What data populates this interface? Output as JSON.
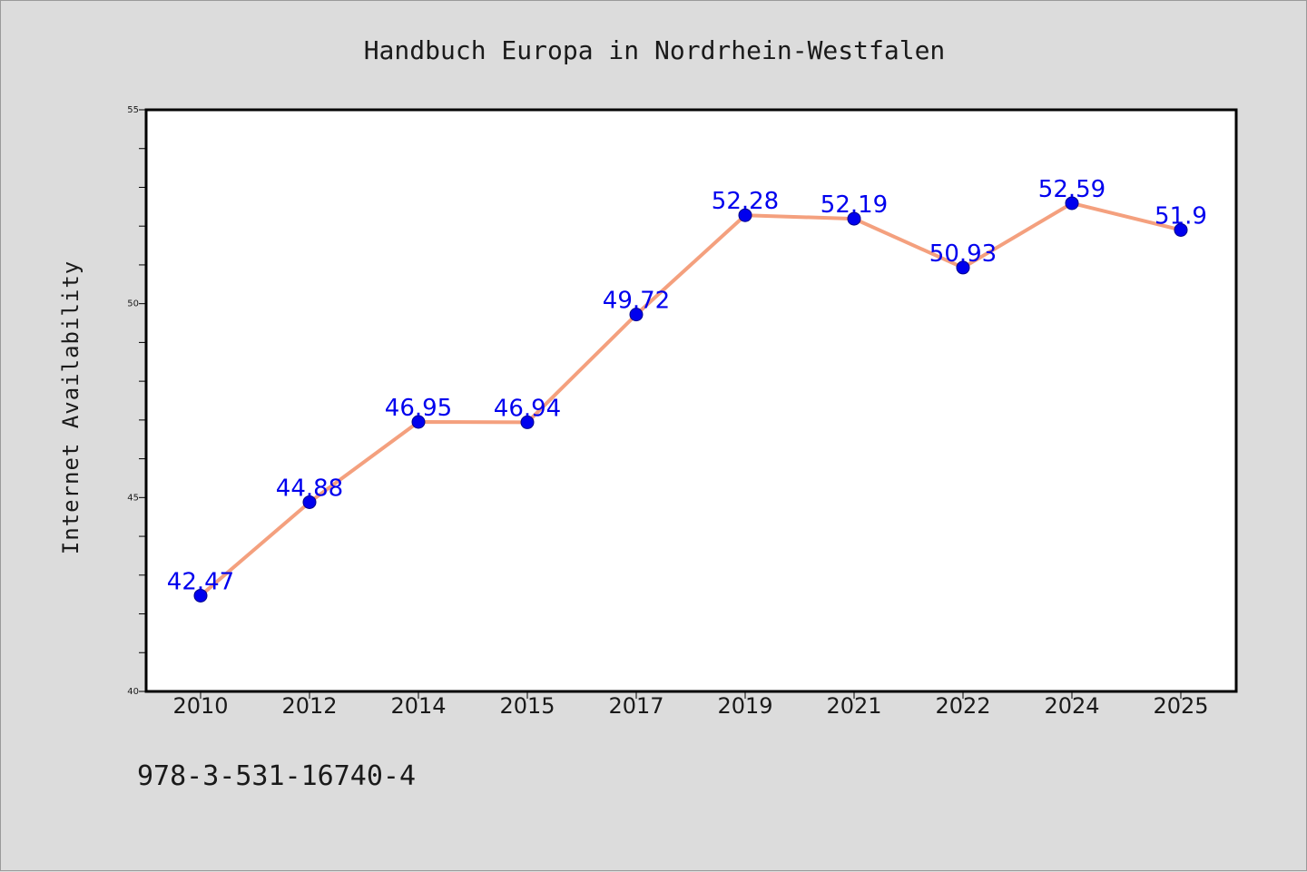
{
  "chart_data": {
    "type": "line",
    "title": "Handbuch Europa in Nordrhein-Westfalen",
    "xlabel": "",
    "ylabel": "Internet Availability",
    "categories": [
      "2010",
      "2012",
      "2014",
      "2015",
      "2017",
      "2019",
      "2021",
      "2022",
      "2024",
      "2025"
    ],
    "series": [
      {
        "values": [
          42.47,
          44.88,
          46.95,
          46.94,
          49.72,
          52.28,
          52.19,
          50.93,
          52.59,
          51.9
        ],
        "labels": [
          "42.47",
          "44.88",
          "46.95",
          "46.94",
          "49.72",
          "52.28",
          "52.19",
          "50.93",
          "52.59",
          "51.9"
        ],
        "line_color": "#f4a07e",
        "marker_color": "#0000ee",
        "label_color": "#0000ee"
      }
    ],
    "ylim": [
      40,
      55
    ],
    "yticks": [
      "40",
      "45",
      "50",
      "55"
    ],
    "grid": false,
    "legend": "none"
  },
  "footer": {
    "isbn": "978-3-531-16740-4"
  },
  "colors": {
    "background": "#dcdcdc",
    "plot_background": "#ffffff",
    "axis": "#000000"
  }
}
